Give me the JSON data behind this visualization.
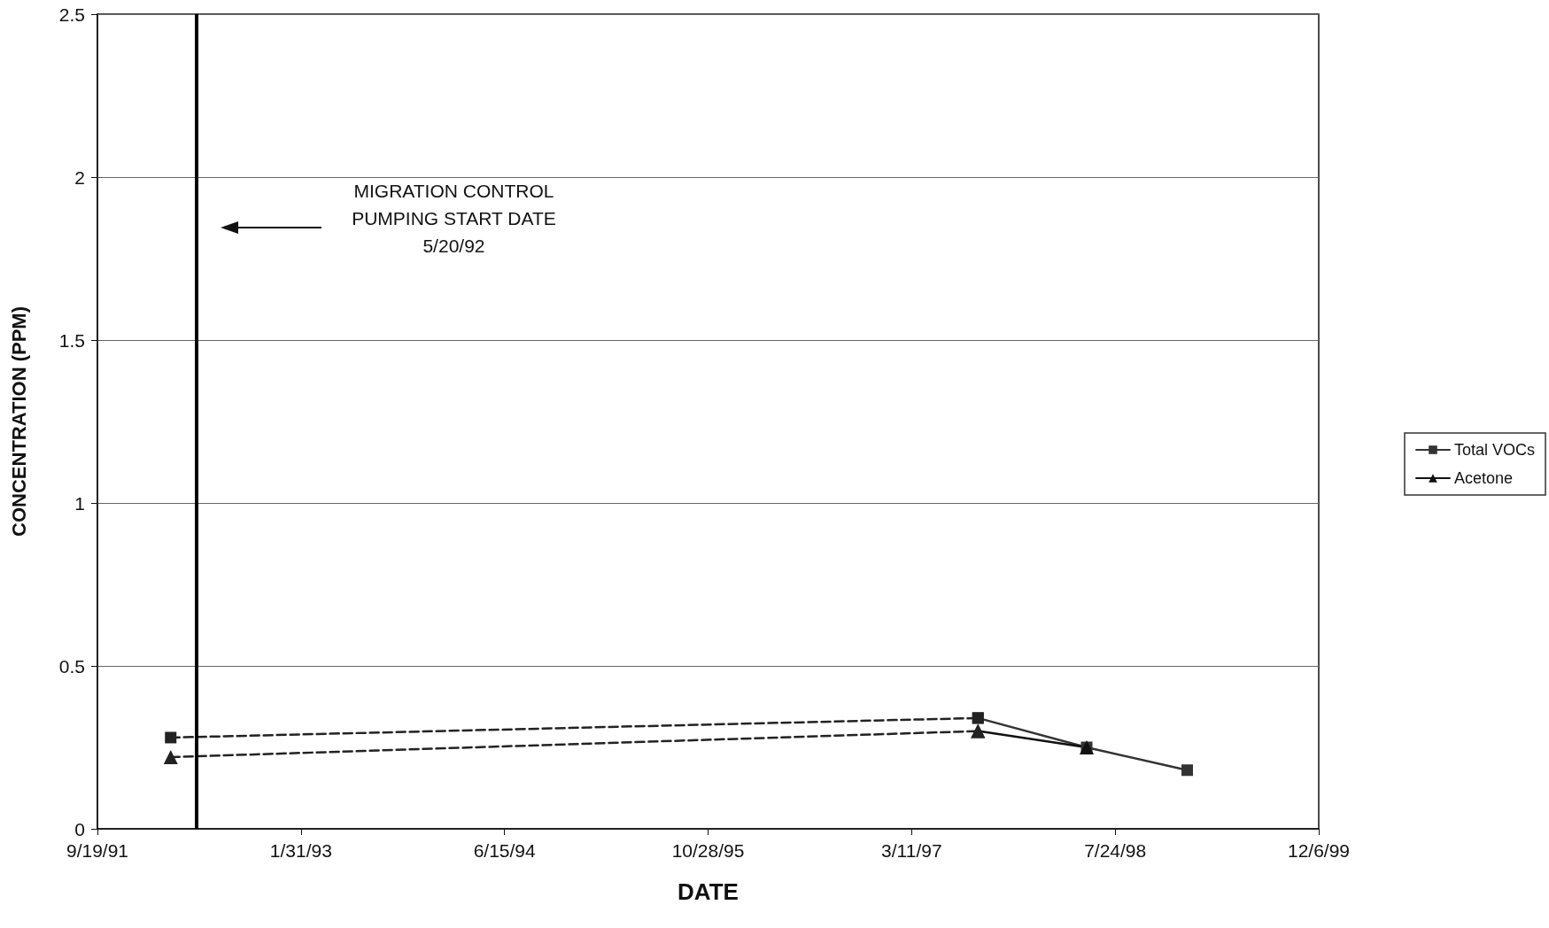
{
  "chart_data": {
    "type": "line",
    "xlabel": "DATE",
    "ylabel": "CONCENTRATION (PPM)",
    "xlim": [
      "1991-09-19",
      "1999-12-06"
    ],
    "xticks": [
      {
        "value": "1991-09-19",
        "label": "9/19/91"
      },
      {
        "value": "1993-01-31",
        "label": "1/31/93"
      },
      {
        "value": "1994-06-15",
        "label": "6/15/94"
      },
      {
        "value": "1995-10-28",
        "label": "10/28/95"
      },
      {
        "value": "1997-03-11",
        "label": "3/11/97"
      },
      {
        "value": "1998-07-24",
        "label": "7/24/98"
      },
      {
        "value": "1999-12-06",
        "label": "12/6/99"
      }
    ],
    "ylim": [
      0,
      2.5
    ],
    "yticks": [
      0,
      0.5,
      1,
      1.5,
      2,
      2.5
    ],
    "grid": "y",
    "legend": "right",
    "series": [
      {
        "name": "Total VOCs",
        "color": "#333333",
        "marker": "square",
        "line_style": "solid",
        "x": [
          "1997-08-21",
          "1998-05-15",
          "1999-01-17"
        ],
        "values": [
          0.34,
          0.25,
          0.18
        ]
      },
      {
        "name": "Acetone",
        "color": "#111111",
        "marker": "triangle",
        "line_style": "solid",
        "x": [
          "1997-08-21",
          "1998-05-15"
        ],
        "values": [
          0.3,
          0.25
        ]
      },
      {
        "color": "#222222",
        "marker": "square",
        "line_style": "dashed",
        "x": [
          "1992-03-17",
          "1997-08-21"
        ],
        "values": [
          0.28,
          0.34
        ]
      },
      {
        "color": "#222222",
        "marker": "triangle",
        "line_style": "dashed",
        "x": [
          "1992-03-17",
          "1997-08-21"
        ],
        "values": [
          0.22,
          0.3
        ]
      }
    ],
    "ref_lines": [
      {
        "axis": "x",
        "value": "1992-05-20",
        "color": "#000000"
      }
    ],
    "annotations": [
      "MIGRATION CONTROL\nPUMPING START DATE\n5/20/92"
    ]
  }
}
